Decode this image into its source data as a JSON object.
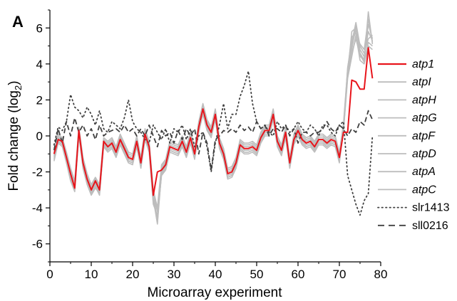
{
  "chart_data": {
    "type": "line",
    "panel_label": "A",
    "xlabel": "Microarray experiment",
    "ylabel_main": "Fold change (log",
    "ylabel_sub": "2",
    "ylabel_close": ")",
    "xlim": [
      0,
      80
    ],
    "ylim": [
      -7,
      7
    ],
    "xticks": [
      "0",
      "10",
      "20",
      "30",
      "40",
      "50",
      "60",
      "70",
      "80"
    ],
    "yticks": [
      "6",
      "4",
      "2",
      "0",
      "-2",
      "-4",
      "-6"
    ],
    "legend_position": "right",
    "x": [
      1,
      2,
      3,
      4,
      5,
      6,
      7,
      8,
      9,
      10,
      11,
      12,
      13,
      14,
      15,
      16,
      17,
      18,
      19,
      20,
      21,
      22,
      23,
      24,
      25,
      26,
      27,
      28,
      29,
      30,
      31,
      32,
      33,
      34,
      35,
      36,
      37,
      38,
      39,
      40,
      41,
      42,
      43,
      44,
      45,
      46,
      47,
      48,
      49,
      50,
      51,
      52,
      53,
      54,
      55,
      56,
      57,
      58,
      59,
      60,
      61,
      62,
      63,
      64,
      65,
      66,
      67,
      68,
      69,
      70,
      71,
      72,
      73,
      74,
      75,
      76,
      77,
      78
    ],
    "series": [
      {
        "name": "atp1",
        "color": "#e8141b",
        "style": "solid",
        "italic": true,
        "values": [
          -1.0,
          -0.2,
          -0.3,
          -1.2,
          -2.1,
          -2.9,
          0.3,
          -1.5,
          -2.4,
          -3.0,
          -2.5,
          -3.0,
          -0.3,
          -0.6,
          -0.4,
          -0.9,
          -0.2,
          -0.7,
          -1.2,
          -1.3,
          -0.3,
          -1.5,
          0.1,
          -0.6,
          -3.3,
          -2.0,
          -1.9,
          -1.6,
          -0.6,
          -0.7,
          -0.8,
          -0.3,
          -0.9,
          -0.1,
          -1.0,
          0.5,
          1.5,
          0.6,
          0.2,
          1.2,
          -0.4,
          -1.0,
          -2.1,
          -2.0,
          -1.5,
          -0.5,
          -0.7,
          -0.7,
          -0.6,
          -0.8,
          -0.1,
          0.3,
          0.3,
          1.2,
          -0.3,
          -0.8,
          0.2,
          -1.5,
          -0.2,
          0.3,
          -0.2,
          -0.4,
          -0.3,
          -0.6,
          -0.2,
          -0.2,
          -0.4,
          -0.2,
          -0.3,
          -1.2,
          0.2,
          0.2,
          3.1,
          3.0,
          2.6,
          2.6,
          4.9,
          3.2
        ]
      },
      {
        "name": "atpI",
        "color": "#bdbdbd",
        "style": "solid",
        "italic": true,
        "values": [
          -1.2,
          -0.3,
          -0.5,
          -1.4,
          -2.3,
          -3.0,
          0.1,
          -1.7,
          -2.6,
          -3.2,
          -2.8,
          -3.3,
          -0.5,
          -0.8,
          -0.6,
          -1.1,
          -0.4,
          -0.9,
          -1.4,
          -1.5,
          -0.5,
          -1.7,
          -0.1,
          -0.8,
          -3.6,
          -4.6,
          -2.1,
          -1.8,
          -0.8,
          -0.9,
          -1.0,
          -0.5,
          -1.1,
          -0.3,
          -1.2,
          0.3,
          1.3,
          0.4,
          0.0,
          1.0,
          -0.6,
          -1.2,
          -2.3,
          -2.2,
          -1.7,
          -0.7,
          -0.9,
          -0.9,
          -0.8,
          -1.0,
          -0.3,
          0.1,
          0.1,
          1.0,
          -0.5,
          -1.0,
          0.0,
          -1.7,
          -0.4,
          0.1,
          -0.4,
          -0.6,
          -0.5,
          -0.8,
          -0.4,
          -0.4,
          -0.6,
          -0.4,
          -0.5,
          -1.4,
          0.4,
          3.8,
          5.2,
          6.3,
          5.0,
          4.6,
          5.4,
          5.6
        ]
      },
      {
        "name": "atpH",
        "color": "#bdbdbd",
        "style": "solid",
        "italic": true,
        "values": [
          -0.8,
          0.0,
          -0.2,
          -1.0,
          -1.9,
          -2.6,
          0.4,
          -1.3,
          -2.2,
          -2.8,
          -2.4,
          -2.8,
          -0.2,
          -0.4,
          -0.2,
          -0.7,
          0.0,
          -0.5,
          -1.0,
          -1.1,
          -0.1,
          -1.3,
          0.3,
          -0.4,
          -3.1,
          -4.8,
          -1.7,
          -1.4,
          -0.4,
          -0.5,
          -0.6,
          -0.1,
          -0.7,
          0.1,
          -0.8,
          0.7,
          1.7,
          0.8,
          0.4,
          1.4,
          -0.2,
          -0.8,
          -1.9,
          -1.8,
          -1.3,
          -0.3,
          -0.5,
          -0.5,
          -0.4,
          -0.6,
          0.1,
          0.5,
          0.5,
          1.4,
          -0.1,
          -0.6,
          0.4,
          -1.3,
          0.0,
          0.5,
          0.0,
          -0.2,
          -0.1,
          -0.4,
          0.0,
          0.0,
          -0.2,
          0.0,
          -0.1,
          -1.0,
          0.6,
          3.4,
          5.8,
          6.0,
          4.6,
          4.2,
          6.9,
          5.1
        ]
      },
      {
        "name": "atpG",
        "color": "#bdbdbd",
        "style": "solid",
        "italic": true,
        "values": [
          -1.4,
          -0.4,
          -0.6,
          -1.5,
          -2.5,
          -3.1,
          0.0,
          -1.8,
          -2.7,
          -3.3,
          -2.9,
          -3.2,
          -0.6,
          -0.9,
          -0.7,
          -1.2,
          -0.5,
          -1.0,
          -1.5,
          -1.6,
          -0.6,
          -1.8,
          -0.2,
          -0.9,
          -3.8,
          -4.4,
          -2.2,
          -1.9,
          -0.9,
          -1.0,
          -1.1,
          -0.6,
          -1.2,
          -0.4,
          -1.3,
          0.2,
          1.2,
          0.3,
          -0.1,
          0.9,
          -0.7,
          -1.3,
          -2.4,
          -2.3,
          -1.8,
          -0.8,
          -1.0,
          -1.0,
          -0.9,
          -1.1,
          -0.4,
          0.0,
          0.0,
          0.9,
          -0.6,
          -1.1,
          -0.1,
          -1.8,
          -0.5,
          0.0,
          -0.5,
          -0.7,
          -0.6,
          -0.9,
          -0.5,
          -0.5,
          -0.7,
          -0.5,
          -0.6,
          -1.5,
          0.3,
          3.2,
          4.4,
          5.6,
          4.2,
          4.0,
          5.0,
          4.8
        ]
      },
      {
        "name": "atpF",
        "color": "#bdbdbd",
        "style": "solid",
        "italic": true,
        "values": [
          -0.9,
          -0.1,
          -0.3,
          -1.1,
          -2.0,
          -2.7,
          0.2,
          -1.4,
          -2.3,
          -2.9,
          -2.5,
          -2.9,
          -0.3,
          -0.5,
          -0.3,
          -0.8,
          -0.1,
          -0.6,
          -1.1,
          -1.2,
          -0.2,
          -1.4,
          0.2,
          -0.5,
          -3.2,
          -4.2,
          -1.8,
          -1.5,
          -0.5,
          -0.6,
          -0.7,
          -0.2,
          -0.8,
          0.0,
          -0.9,
          0.6,
          1.6,
          0.7,
          0.3,
          1.3,
          -0.3,
          -0.9,
          -2.0,
          -1.9,
          -1.4,
          -0.4,
          -0.6,
          -0.6,
          -0.5,
          -0.7,
          0.0,
          0.4,
          0.4,
          1.3,
          -0.2,
          -0.7,
          0.3,
          -1.4,
          -0.1,
          0.4,
          -0.1,
          -0.3,
          -0.2,
          -0.5,
          -0.1,
          -0.1,
          -0.3,
          -0.1,
          -0.2,
          -1.1,
          0.5,
          3.6,
          5.0,
          5.9,
          4.8,
          4.4,
          5.8,
          5.3
        ]
      },
      {
        "name": "atpD",
        "color": "#bdbdbd",
        "style": "solid",
        "italic": true,
        "values": [
          -1.1,
          -0.2,
          -0.4,
          -1.3,
          -2.2,
          -2.9,
          0.2,
          -1.6,
          -2.5,
          -3.1,
          -2.6,
          -3.1,
          -0.4,
          -0.7,
          -0.5,
          -1.0,
          -0.3,
          -0.8,
          -1.3,
          -1.4,
          -0.4,
          -1.6,
          0.0,
          -0.7,
          -3.5,
          -4.9,
          -2.0,
          -1.7,
          -0.7,
          -0.8,
          -0.9,
          -0.4,
          -1.0,
          -0.2,
          -1.1,
          0.4,
          1.4,
          0.5,
          0.1,
          1.1,
          -0.5,
          -1.1,
          -2.2,
          -2.1,
          -1.6,
          -0.6,
          -0.8,
          -0.8,
          -0.7,
          -0.9,
          -0.2,
          0.2,
          0.2,
          1.1,
          -0.4,
          -0.9,
          0.1,
          -1.6,
          -0.3,
          0.2,
          -0.3,
          -0.5,
          -0.4,
          -0.7,
          -0.3,
          -0.3,
          -0.5,
          -0.3,
          -0.4,
          -1.3,
          0.3,
          3.5,
          4.8,
          6.1,
          4.4,
          4.3,
          6.2,
          5.4
        ]
      },
      {
        "name": "atpA",
        "color": "#bdbdbd",
        "style": "solid",
        "italic": true,
        "values": [
          -1.3,
          -0.3,
          -0.5,
          -1.4,
          -2.4,
          -3.0,
          0.1,
          -1.7,
          -2.6,
          -3.2,
          -2.7,
          -3.2,
          -0.5,
          -0.8,
          -0.6,
          -1.1,
          -0.4,
          -0.9,
          -1.4,
          -1.5,
          -0.5,
          -1.7,
          -0.1,
          -0.8,
          -3.7,
          -4.5,
          -2.1,
          -1.8,
          -0.8,
          -0.9,
          -1.0,
          -0.5,
          -1.1,
          -0.3,
          -1.2,
          0.3,
          1.3,
          0.4,
          0.0,
          1.0,
          -0.6,
          -1.2,
          -2.3,
          -2.2,
          -1.7,
          -0.7,
          -0.9,
          -0.9,
          -0.8,
          -1.0,
          -0.3,
          0.1,
          0.1,
          1.0,
          -0.5,
          -1.0,
          0.0,
          -1.7,
          -0.4,
          0.1,
          -0.4,
          -0.6,
          -0.5,
          -0.8,
          -0.4,
          -0.4,
          -0.6,
          -0.4,
          -0.5,
          -1.4,
          0.4,
          3.3,
          4.6,
          5.4,
          4.5,
          4.1,
          5.2,
          5.0
        ]
      },
      {
        "name": "atpC",
        "color": "#bdbdbd",
        "style": "solid",
        "italic": true,
        "values": [
          -0.7,
          0.1,
          -0.1,
          -0.9,
          -1.8,
          -2.5,
          0.5,
          -1.2,
          -2.1,
          -2.7,
          -2.3,
          -2.7,
          -0.1,
          -0.3,
          -0.1,
          -0.6,
          0.1,
          -0.4,
          -0.9,
          -1.0,
          0.0,
          -1.2,
          0.4,
          -0.3,
          -3.0,
          -4.0,
          -1.6,
          -1.3,
          -0.3,
          -0.4,
          -0.5,
          0.0,
          -0.6,
          0.2,
          -0.7,
          0.8,
          1.8,
          0.9,
          0.5,
          1.5,
          -0.1,
          -0.7,
          -1.8,
          -1.7,
          -1.2,
          -0.2,
          -0.4,
          -0.4,
          -0.3,
          -0.5,
          0.2,
          0.6,
          0.6,
          1.5,
          0.0,
          -0.5,
          0.5,
          -1.2,
          0.1,
          0.6,
          0.1,
          -0.1,
          0.0,
          -0.3,
          0.1,
          0.1,
          -0.1,
          0.1,
          0.0,
          -0.9,
          0.7,
          3.7,
          5.5,
          5.7,
          5.1,
          4.8,
          6.5,
          5.2
        ]
      },
      {
        "name": "slr1413",
        "color": "#404040",
        "style": "dotted",
        "italic": false,
        "values": [
          -0.5,
          0.5,
          0.3,
          0.8,
          2.3,
          1.6,
          1.4,
          1.0,
          1.6,
          1.2,
          0.6,
          1.4,
          0.4,
          0.2,
          0.8,
          0.6,
          0.4,
          1.0,
          2.0,
          0.8,
          0.4,
          0.2,
          -0.2,
          -0.4,
          0.6,
          0.2,
          -0.2,
          0.4,
          -0.4,
          0.4,
          0.2,
          0.6,
          -0.2,
          0.4,
          -0.6,
          0.0,
          0.2,
          -0.6,
          -2.0,
          -0.4,
          0.6,
          1.8,
          0.4,
          1.2,
          1.2,
          2.2,
          2.8,
          3.6,
          1.8,
          0.8,
          0.4,
          0.6,
          0.2,
          0.0,
          0.8,
          0.4,
          0.6,
          0.2,
          0.4,
          0.8,
          0.4,
          0.2,
          0.6,
          0.4,
          0.0,
          0.6,
          0.6,
          0.2,
          0.0,
          0.6,
          0.8,
          -2.2,
          -3.0,
          -3.8,
          -4.4,
          -3.6,
          -3.2,
          0.0
        ]
      },
      {
        "name": "sll0216",
        "color": "#404040",
        "style": "dashed",
        "italic": false,
        "values": [
          -0.8,
          0.4,
          -0.4,
          0.8,
          0.0,
          1.0,
          0.2,
          0.6,
          0.0,
          0.4,
          -0.2,
          0.6,
          0.0,
          0.2,
          0.3,
          0.4,
          0.2,
          0.6,
          0.2,
          0.4,
          0.0,
          0.4,
          0.0,
          0.6,
          0.0,
          -0.6,
          0.3,
          0.0,
          0.2,
          -0.4,
          0.3,
          -0.2,
          0.4,
          0.0,
          0.4,
          -1.0,
          0.2,
          -0.4,
          -1.9,
          -0.2,
          0.0,
          0.3,
          0.2,
          0.4,
          0.2,
          0.6,
          0.3,
          0.5,
          0.2,
          0.8,
          0.4,
          0.6,
          0.0,
          0.4,
          0.4,
          0.2,
          0.6,
          0.0,
          0.4,
          -0.4,
          0.2,
          0.2,
          0.0,
          0.2,
          0.2,
          0.4,
          0.8,
          0.4,
          0.2,
          0.6,
          0.4,
          0.0,
          0.4,
          0.2,
          0.8,
          0.6,
          1.4,
          0.9
        ]
      }
    ]
  }
}
